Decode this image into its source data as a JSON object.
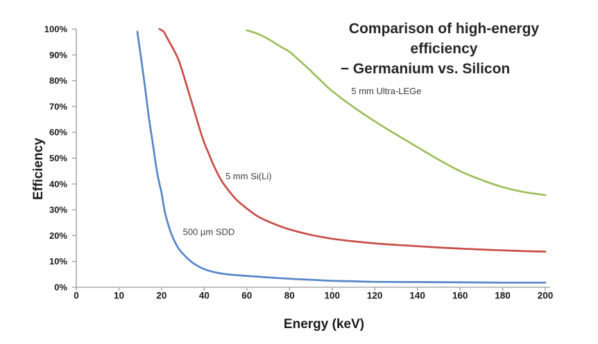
{
  "title": {
    "line1": "Comparison of high-energy efficiency",
    "line2": "− Germanium vs. Silicon"
  },
  "axes": {
    "x_title": "Energy (keV)",
    "y_title": "Efficiency",
    "x_tick_labels": [
      "0",
      "10",
      "20",
      "40",
      "60",
      "80",
      "100",
      "120",
      "140",
      "160",
      "180",
      "200"
    ],
    "y_tick_labels": [
      "0%",
      "10%",
      "20%",
      "30%",
      "40%",
      "50%",
      "60%",
      "70%",
      "80%",
      "90%",
      "100%"
    ]
  },
  "colors": {
    "axis": "#9a9a9a",
    "tick_label": "#1a1a1a",
    "title_text": "#262626",
    "annotation_text": "#3d3d3d",
    "sdd_blue": "#5585C8",
    "sili_red": "#C94C46",
    "lege_green": "#9CBF5B"
  },
  "chart_data": {
    "type": "line",
    "title": "Comparison of high-energy efficiency − Germanium vs. Silicon",
    "xlabel": "Energy (keV)",
    "ylabel": "Efficiency",
    "grid": false,
    "legend_position": "inline curve labels",
    "x_axis_type": "category (equal spacing between tick labels 0,10,20 then 40..200 step 20)",
    "x_categories": [
      0,
      10,
      20,
      40,
      60,
      80,
      100,
      120,
      140,
      160,
      180,
      200
    ],
    "ylim": [
      0,
      100
    ],
    "y_unit": "%",
    "series": [
      {
        "name": "500 µm SDD",
        "color": "#5585C8",
        "points": [
          [
            14.3,
            99
          ],
          [
            15,
            91
          ],
          [
            16,
            79
          ],
          [
            17,
            66
          ],
          [
            18,
            55
          ],
          [
            19,
            44
          ],
          [
            20,
            36.5
          ],
          [
            21,
            31.5
          ],
          [
            22,
            27.5
          ],
          [
            24,
            22
          ],
          [
            26,
            18
          ],
          [
            28,
            15
          ],
          [
            30,
            13
          ],
          [
            33,
            10.5
          ],
          [
            36,
            8.7
          ],
          [
            40,
            7
          ],
          [
            45,
            5.8
          ],
          [
            50,
            5.1
          ],
          [
            55,
            4.7
          ],
          [
            60,
            4.4
          ],
          [
            70,
            3.8
          ],
          [
            80,
            3.3
          ],
          [
            90,
            2.9
          ],
          [
            100,
            2.5
          ],
          [
            110,
            2.3
          ],
          [
            120,
            2.1
          ],
          [
            140,
            2.0
          ],
          [
            160,
            1.9
          ],
          [
            180,
            1.8
          ],
          [
            200,
            1.8
          ]
        ]
      },
      {
        "name": "5 mm Si(Li)",
        "color": "#C94C46",
        "points": [
          [
            19.5,
            100
          ],
          [
            21,
            99
          ],
          [
            22,
            97.5
          ],
          [
            24,
            94.5
          ],
          [
            26,
            91.5
          ],
          [
            28,
            88
          ],
          [
            30,
            83
          ],
          [
            32,
            77.5
          ],
          [
            34,
            72
          ],
          [
            36,
            66.5
          ],
          [
            38,
            61
          ],
          [
            40,
            56
          ],
          [
            42,
            52
          ],
          [
            44,
            48
          ],
          [
            46,
            44.5
          ],
          [
            48,
            41.5
          ],
          [
            50,
            39
          ],
          [
            55,
            34
          ],
          [
            60,
            30.5
          ],
          [
            65,
            27.5
          ],
          [
            70,
            25.5
          ],
          [
            75,
            23.8
          ],
          [
            80,
            22.4
          ],
          [
            90,
            20.3
          ],
          [
            100,
            18.8
          ],
          [
            110,
            17.8
          ],
          [
            120,
            17
          ],
          [
            130,
            16.4
          ],
          [
            140,
            15.9
          ],
          [
            150,
            15.4
          ],
          [
            160,
            15
          ],
          [
            170,
            14.6
          ],
          [
            180,
            14.3
          ],
          [
            190,
            14
          ],
          [
            200,
            13.8
          ]
        ]
      },
      {
        "name": "5 mm Ultra-LEGe",
        "color": "#9CBF5B",
        "points": [
          [
            60,
            99.5
          ],
          [
            65,
            98.2
          ],
          [
            70,
            96.2
          ],
          [
            75,
            93.6
          ],
          [
            80,
            91.2
          ],
          [
            85,
            87.6
          ],
          [
            90,
            83.8
          ],
          [
            95,
            79.8
          ],
          [
            100,
            76
          ],
          [
            110,
            69.8
          ],
          [
            120,
            64.3
          ],
          [
            130,
            59.2
          ],
          [
            140,
            54.3
          ],
          [
            150,
            49.4
          ],
          [
            160,
            45
          ],
          [
            170,
            41.6
          ],
          [
            180,
            38.8
          ],
          [
            190,
            36.9
          ],
          [
            200,
            35.7
          ]
        ]
      }
    ],
    "annotations": [
      {
        "text": "500 µm SDD",
        "x": 30,
        "y": 21.5
      },
      {
        "text": "5 mm Si(Li)",
        "x": 50,
        "y": 43
      },
      {
        "text": "5 mm Ultra-LEGe",
        "x": 109,
        "y": 76
      }
    ]
  }
}
